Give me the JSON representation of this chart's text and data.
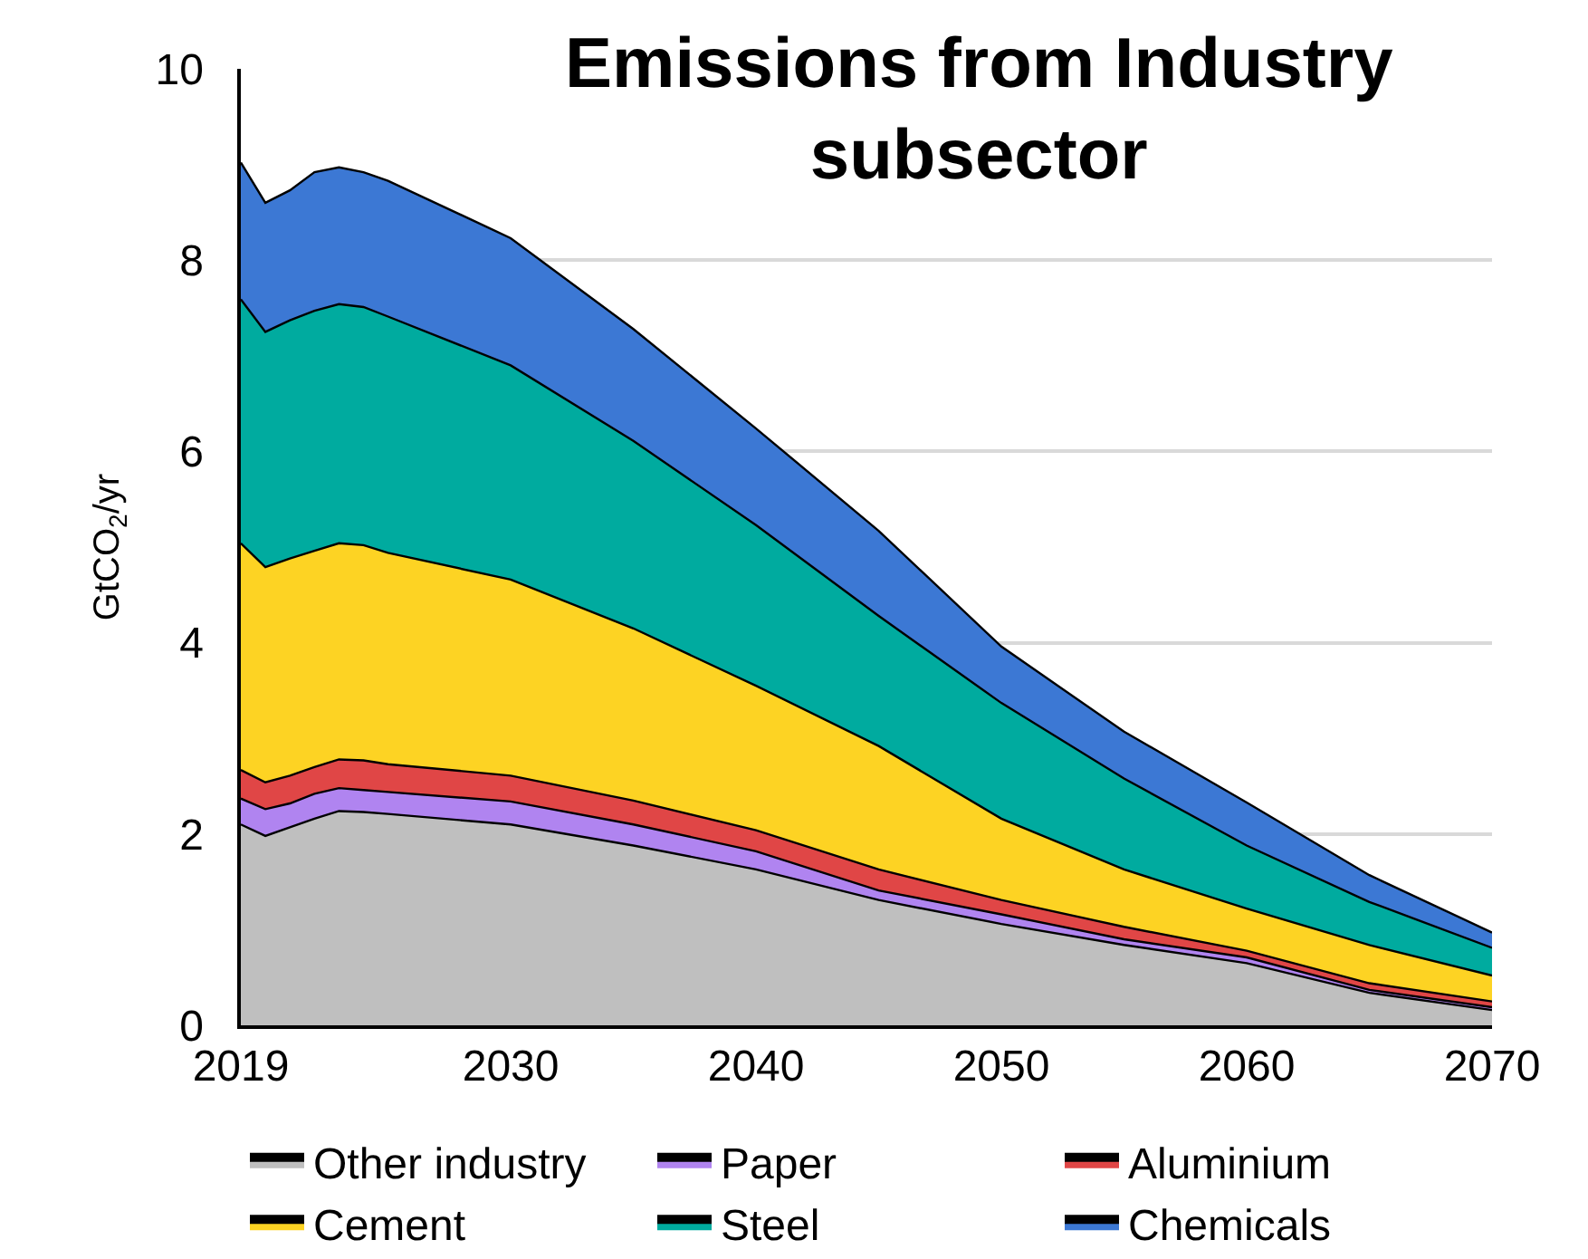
{
  "chart_data": {
    "type": "area",
    "stacked": true,
    "title": "Emissions from Industry\nsubsector",
    "ylabel": "GtCO$_{2}$/yr",
    "x": [
      2019,
      2020,
      2021,
      2022,
      2023,
      2024,
      2025,
      2030,
      2035,
      2040,
      2045,
      2050,
      2055,
      2060,
      2065,
      2070
    ],
    "xlim": [
      2019,
      2070
    ],
    "xticks": [
      2019,
      2030,
      2040,
      2050,
      2060,
      2070
    ],
    "ylim": [
      0,
      10
    ],
    "yticks": [
      0,
      2,
      4,
      6,
      8,
      10
    ],
    "grid": "y",
    "legend": "bottom",
    "series": [
      {
        "name": "Other industry",
        "color": "#bfbfbf",
        "values": [
          2.1,
          1.98,
          2.07,
          2.16,
          2.24,
          2.23,
          2.21,
          2.1,
          1.88,
          1.63,
          1.31,
          1.06,
          0.84,
          0.65,
          0.34,
          0.16
        ]
      },
      {
        "name": "Paper",
        "color": "#b084f0",
        "values": [
          0.27,
          0.28,
          0.25,
          0.26,
          0.24,
          0.23,
          0.23,
          0.24,
          0.22,
          0.19,
          0.1,
          0.1,
          0.06,
          0.06,
          0.03,
          0.03
        ]
      },
      {
        "name": "Aluminium",
        "color": "#e04646",
        "values": [
          0.3,
          0.28,
          0.29,
          0.28,
          0.3,
          0.31,
          0.29,
          0.27,
          0.25,
          0.22,
          0.22,
          0.15,
          0.13,
          0.07,
          0.07,
          0.06
        ]
      },
      {
        "name": "Cement",
        "color": "#fdd323",
        "values": [
          2.37,
          2.25,
          2.27,
          2.26,
          2.26,
          2.25,
          2.21,
          2.05,
          1.8,
          1.51,
          1.29,
          0.85,
          0.6,
          0.44,
          0.4,
          0.27
        ]
      },
      {
        "name": "Steel",
        "color": "#00ab9f",
        "values": [
          2.55,
          2.46,
          2.49,
          2.51,
          2.5,
          2.49,
          2.47,
          2.24,
          1.96,
          1.68,
          1.36,
          1.21,
          0.95,
          0.66,
          0.45,
          0.29
        ]
      },
      {
        "name": "Chemicals",
        "color": "#3c78d4",
        "values": [
          1.43,
          1.35,
          1.36,
          1.45,
          1.43,
          1.41,
          1.42,
          1.33,
          1.17,
          1.01,
          0.89,
          0.59,
          0.49,
          0.45,
          0.28,
          0.16
        ]
      }
    ]
  }
}
